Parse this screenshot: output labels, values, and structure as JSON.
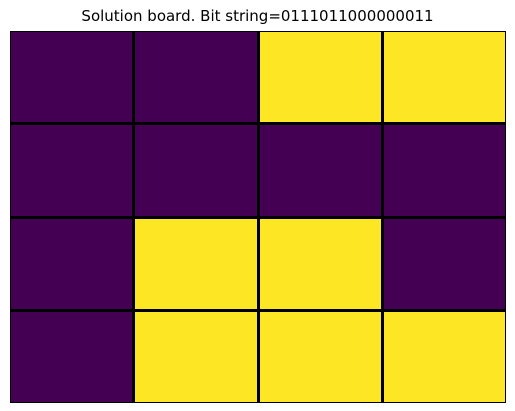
{
  "title": "Solution board. Bit string=0111011000000011",
  "colors": {
    "off": "#440154",
    "on": "#fde725",
    "grid_line": "#000000"
  },
  "board": {
    "rows": 4,
    "cols": 4,
    "cells": [
      [
        0,
        0,
        1,
        1
      ],
      [
        0,
        0,
        0,
        0
      ],
      [
        0,
        1,
        1,
        0
      ],
      [
        0,
        1,
        1,
        1
      ]
    ]
  }
}
